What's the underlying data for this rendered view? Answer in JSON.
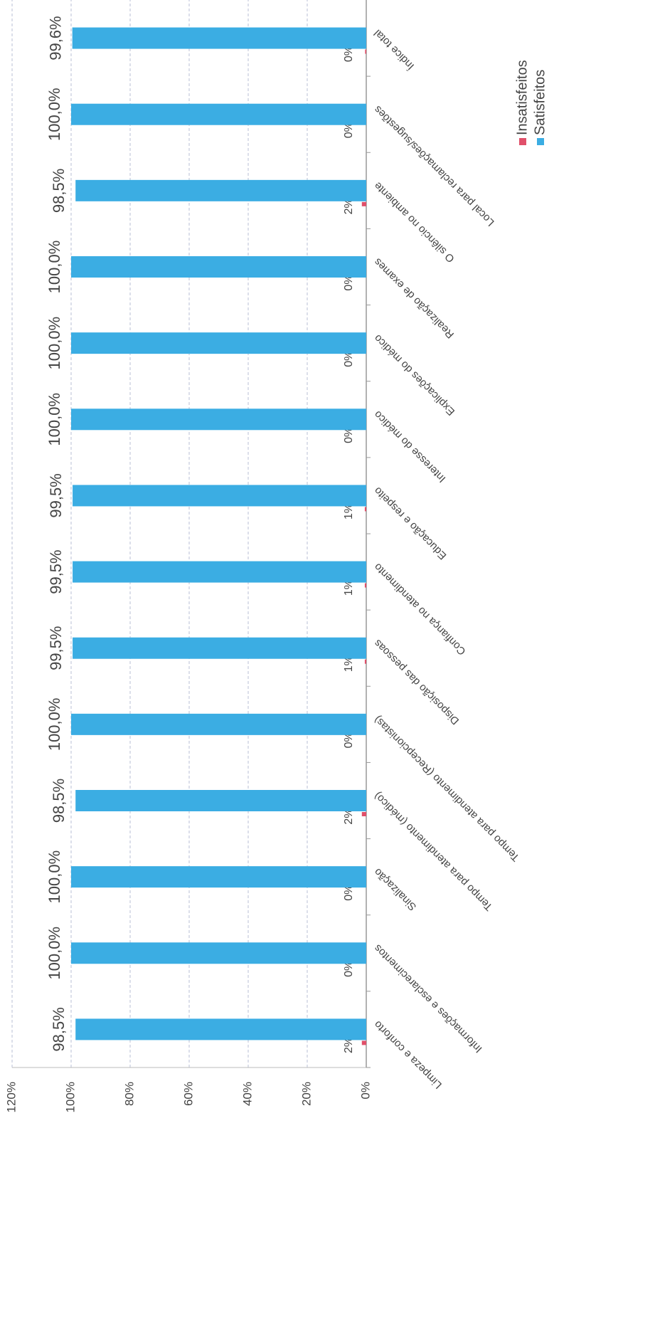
{
  "chart_data": {
    "type": "bar",
    "categories": [
      "Limpeza e conforto",
      "Informações e esclarecimentos",
      "Sinalização",
      "Tempo para atendimento (médico)",
      "Tempo para atendimento (Recepcionistas)",
      "Disposição das pessoas",
      "Confiança no atendimento",
      "Educação e respeito",
      "Interesse do médico",
      "Explicações do médico",
      "Realização de exames",
      "O silêncio no ambiente",
      "Local para reclamações/sugestões",
      "Índice total"
    ],
    "series": [
      {
        "name": "Insatisfeitos",
        "color": "#e0506a",
        "values": [
          1.5,
          0,
          0,
          1.5,
          0,
          0.5,
          0.5,
          0.5,
          0,
          0,
          0,
          1.5,
          0,
          0.4
        ],
        "value_labels": [
          "2%",
          "0%",
          "0%",
          "2%",
          "0%",
          "1%",
          "1%",
          "1%",
          "0%",
          "0%",
          "0%",
          "2%",
          "0%",
          "0%"
        ]
      },
      {
        "name": "Satisfeitos",
        "color": "#3bade3",
        "values": [
          98.5,
          100,
          100,
          98.5,
          100,
          99.5,
          99.5,
          99.5,
          100,
          100,
          100,
          98.5,
          100,
          99.6
        ],
        "value_labels": [
          "98,5%",
          "100,0%",
          "100,0%",
          "98,5%",
          "100,0%",
          "99,5%",
          "99,5%",
          "99,5%",
          "100,0%",
          "100,0%",
          "100,0%",
          "98,5%",
          "100,0%",
          "99,6%"
        ]
      }
    ],
    "ylim": [
      0,
      120
    ],
    "yticks": [
      {
        "value": 0,
        "label": "0%"
      },
      {
        "value": 20,
        "label": "20%"
      },
      {
        "value": 40,
        "label": "40%"
      },
      {
        "value": 60,
        "label": "60%"
      },
      {
        "value": 80,
        "label": "80%"
      },
      {
        "value": 100,
        "label": "100%"
      },
      {
        "value": 120,
        "label": "120%"
      }
    ],
    "grid": true,
    "legend": "right"
  }
}
